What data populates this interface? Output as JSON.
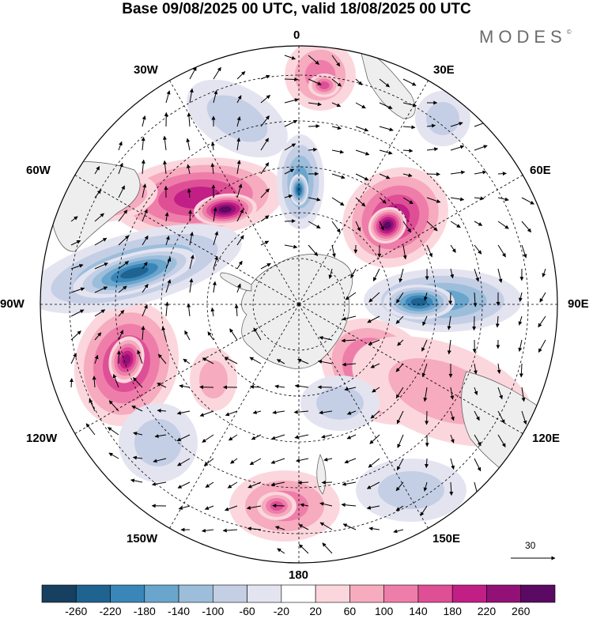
{
  "title": "Base 09/08/2025 00 UTC, valid 18/08/2025 00 UTC",
  "logo": {
    "text": "MODES",
    "mark": "©"
  },
  "longitude_labels": [
    "0",
    "30E",
    "60E",
    "90E",
    "120E",
    "150E",
    "180",
    "150W",
    "120W",
    "90W",
    "60W",
    "30W"
  ],
  "reference_vector": {
    "value": "30"
  },
  "colorbar": {
    "ticks": [
      "-260",
      "-220",
      "-180",
      "-140",
      "-100",
      "-60",
      "-20",
      "20",
      "60",
      "100",
      "140",
      "180",
      "220",
      "260"
    ],
    "colors": [
      "#173f5f",
      "#1f6391",
      "#3a86b8",
      "#6aa5cd",
      "#9cbedb",
      "#c4cfe6",
      "#e4e4f1",
      "#ffffff",
      "#fbd7dd",
      "#f6abbf",
      "#ee7ea9",
      "#df4f96",
      "#c11f86",
      "#931176",
      "#5a0a62"
    ]
  },
  "colors": {
    "land": "#eeeeee",
    "outline": "#000000"
  }
}
